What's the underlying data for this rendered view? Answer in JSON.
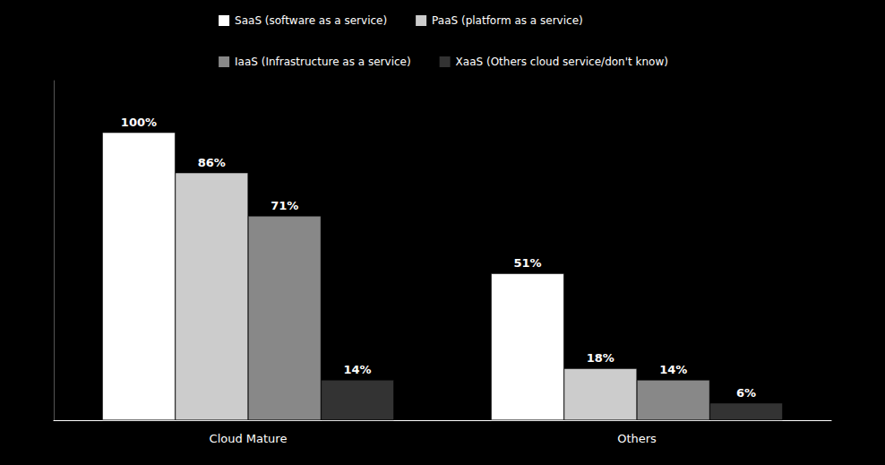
{
  "chart_data": {
    "type": "bar",
    "categories": [
      "Cloud Mature",
      "Others"
    ],
    "series": [
      {
        "name": "SaaS (software as a service)",
        "color": "#ffffff",
        "values": [
          100,
          51
        ],
        "value_labels": [
          "100%",
          "51%"
        ]
      },
      {
        "name": "PaaS (platform as a service)",
        "color": "#cccccc",
        "values": [
          86,
          18
        ],
        "value_labels": [
          "86%",
          "18%"
        ]
      },
      {
        "name": "IaaS (Infrastructure as a service)",
        "color": "#888888",
        "values": [
          71,
          14
        ],
        "value_labels": [
          "71%",
          "14%"
        ]
      },
      {
        "name": "XaaS (Others cloud service/don't know)",
        "color": "#333333",
        "values": [
          14,
          6
        ],
        "value_labels": [
          "14%",
          "6%"
        ]
      }
    ],
    "ylim": [
      0,
      118
    ],
    "grid": false,
    "legend": "top",
    "data_labels": true,
    "tick_labels": "x"
  }
}
